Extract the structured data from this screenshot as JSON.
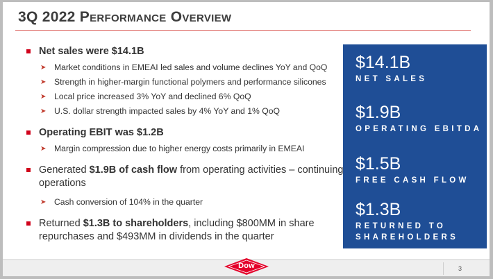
{
  "slide": {
    "title": "3Q 2022 Performance Overview",
    "page_number": "3",
    "logo_text": "Dow"
  },
  "bullets": [
    {
      "parts": [
        {
          "text": "Net sales were $14.1B",
          "bold": true
        }
      ],
      "subs": [
        "Market conditions in EMEAI led sales and volume declines YoY and QoQ",
        "Strength in higher-margin functional polymers and performance silicones",
        "Local price increased 3% YoY and declined 6% QoQ",
        "U.S. dollar strength impacted sales by 4% YoY and 1% QoQ"
      ]
    },
    {
      "parts": [
        {
          "text": "Operating EBIT was $1.2B",
          "bold": true
        }
      ],
      "subs": [
        "Margin compression due to higher energy costs primarily in EMEAI"
      ]
    },
    {
      "parts": [
        {
          "text": "Generated ",
          "bold": false
        },
        {
          "text": "$1.9B of cash flow",
          "bold": true
        },
        {
          "text": " from operating activities – continuing operations",
          "bold": false
        }
      ],
      "subs": [
        "Cash conversion of 104% in the quarter"
      ]
    },
    {
      "parts": [
        {
          "text": "Returned ",
          "bold": false
        },
        {
          "text": "$1.3B to shareholders",
          "bold": true
        },
        {
          "text": ", including $800MM in share repurchases and $493MM in dividends in the quarter",
          "bold": false
        }
      ],
      "subs": []
    }
  ],
  "metrics": [
    {
      "value": "$14.1B",
      "label": [
        "NET SALES"
      ]
    },
    {
      "value": "$1.9B",
      "label": [
        "OPERATING EBITDA"
      ]
    },
    {
      "value": "$1.5B",
      "label": [
        "FREE CASH FLOW"
      ]
    },
    {
      "value": "$1.3B",
      "label": [
        "RETURNED TO",
        "SHAREHOLDERS"
      ]
    }
  ],
  "colors": {
    "accent_red": "#d0021b",
    "panel_blue": "#1f4e96",
    "title_text": "#3c3c3c"
  }
}
